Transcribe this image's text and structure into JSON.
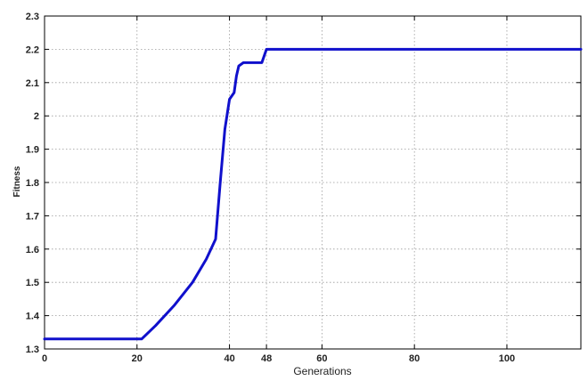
{
  "chart_data": {
    "type": "line",
    "title": "",
    "xlabel": "Generations",
    "ylabel": "Fitness",
    "xlim": [
      0,
      116
    ],
    "ylim": [
      1.3,
      2.3
    ],
    "xticks": [
      0,
      20,
      40,
      48,
      60,
      80,
      100
    ],
    "xtick_labels": [
      "0",
      "20",
      "40",
      "48",
      "60",
      "80",
      "100"
    ],
    "yticks": [
      1.3,
      1.4,
      1.5,
      1.6,
      1.7,
      1.8,
      1.9,
      2.0,
      2.1,
      2.2,
      2.3
    ],
    "ytick_labels": [
      "1.3",
      "1.4",
      "1.5",
      "1.6",
      "1.7",
      "1.8",
      "1.9",
      "2",
      "2.1",
      "2.2",
      "2.3"
    ],
    "grid": true,
    "series": [
      {
        "color": "#1010cc",
        "x": [
          0,
          20,
          21,
          24,
          28,
          32,
          35,
          37,
          38,
          39,
          40,
          41,
          41.5,
          42,
          43,
          47,
          48,
          116
        ],
        "y": [
          1.33,
          1.33,
          1.33,
          1.37,
          1.43,
          1.5,
          1.57,
          1.63,
          1.8,
          1.96,
          2.05,
          2.07,
          2.12,
          2.15,
          2.16,
          2.16,
          2.2,
          2.2
        ]
      }
    ]
  }
}
